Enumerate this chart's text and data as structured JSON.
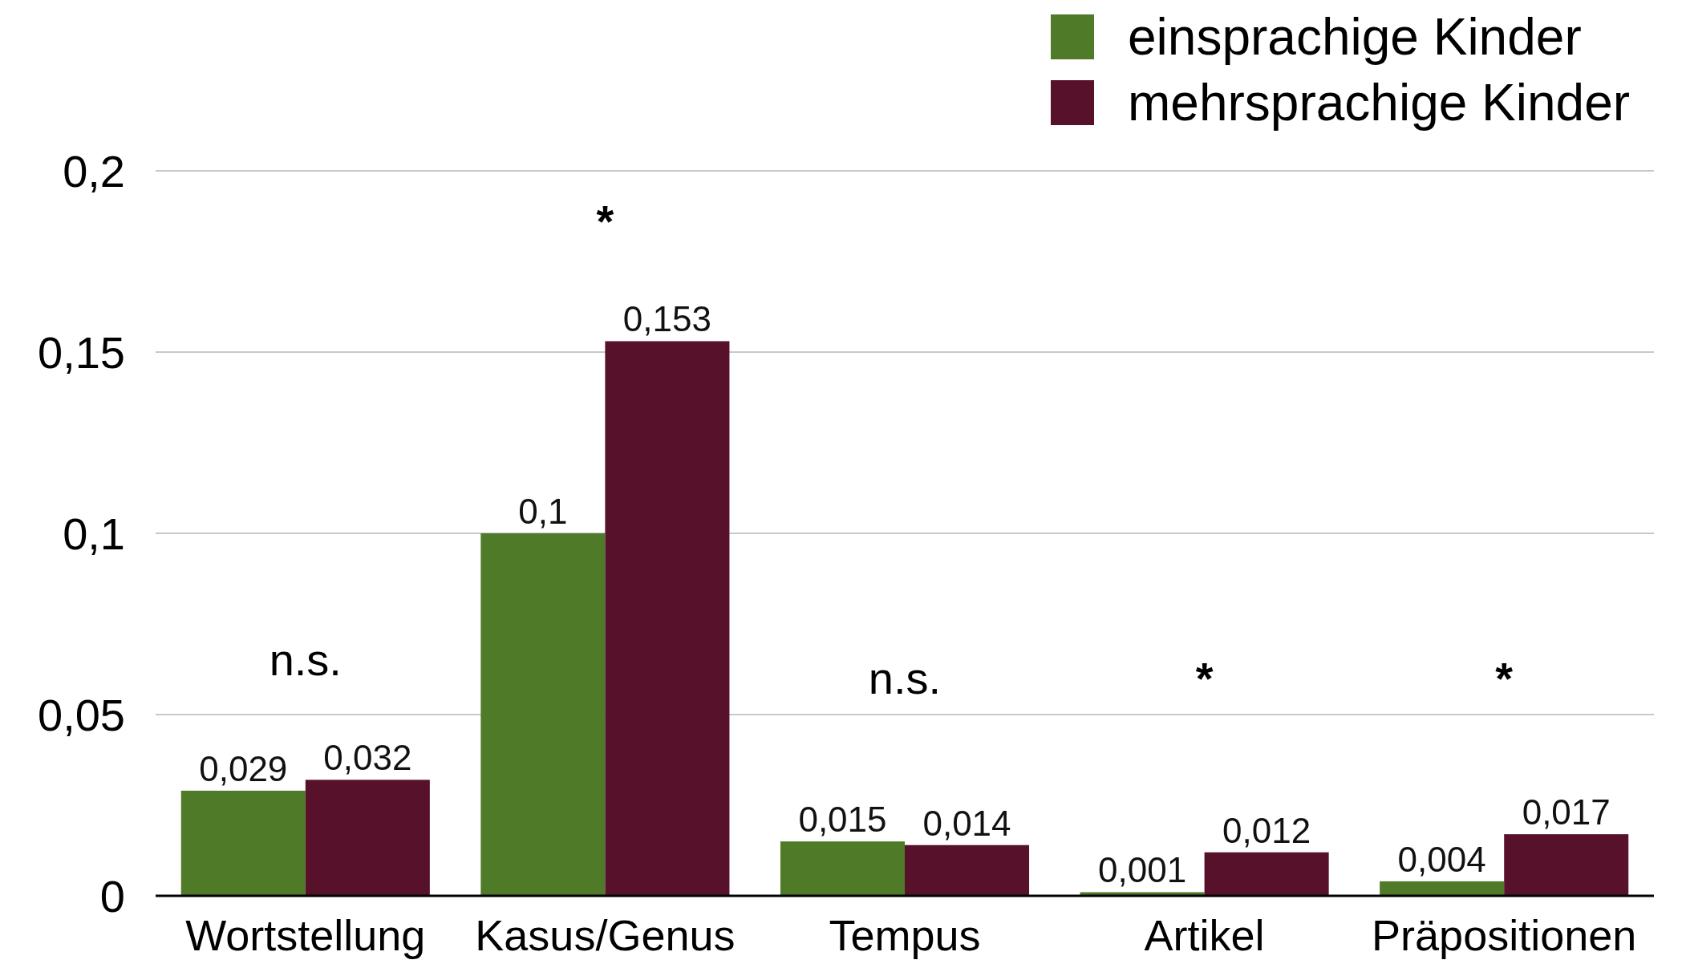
{
  "chart_data": {
    "type": "bar",
    "categories": [
      "Wortstellung",
      "Kasus/Genus",
      "Tempus",
      "Artikel",
      "Präpositionen"
    ],
    "series": [
      {
        "name": "einsprachige Kinder",
        "color": "#4f7a28",
        "values": [
          0.029,
          0.1,
          0.015,
          0.001,
          0.004
        ],
        "value_labels": [
          "0,029",
          "0,1",
          "0,015",
          "0,001",
          "0,004"
        ]
      },
      {
        "name": "mehrsprachige Kinder",
        "color": "#58112b",
        "values": [
          0.032,
          0.153,
          0.014,
          0.012,
          0.017
        ],
        "value_labels": [
          "0,032",
          "0,153",
          "0,014",
          "0,012",
          "0,017"
        ]
      }
    ],
    "ylim": [
      0,
      0.2
    ],
    "yticks": [
      {
        "value": 0,
        "label": "0"
      },
      {
        "value": 0.05,
        "label": "0,05"
      },
      {
        "value": 0.1,
        "label": "0,1"
      },
      {
        "value": 0.15,
        "label": "0,15"
      },
      {
        "value": 0.2,
        "label": "0,2"
      }
    ],
    "grid": "y",
    "legend": "top right",
    "annotations": [
      "n.s.",
      "*",
      "n.s.",
      "*",
      "*"
    ]
  }
}
